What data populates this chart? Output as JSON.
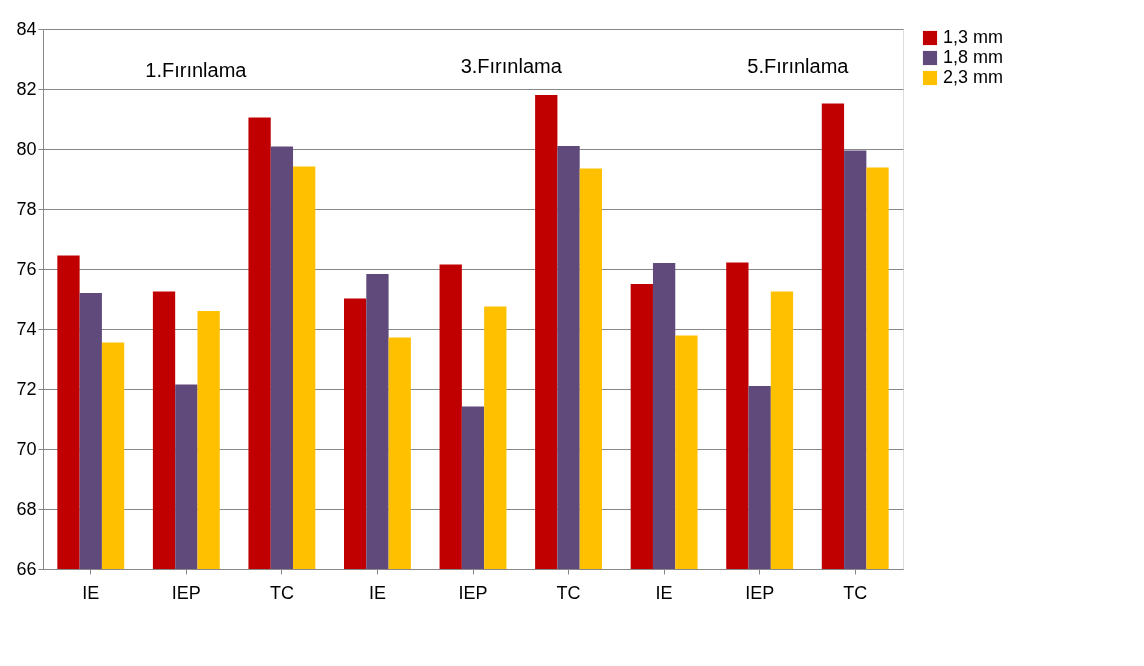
{
  "chart_data": {
    "type": "bar",
    "categories": [
      "IE",
      "IEP",
      "TC",
      "IE",
      "IEP",
      "TC",
      "IE",
      "IEP",
      "TC"
    ],
    "series": [
      {
        "name": "1,3 mm",
        "color": "#c00000",
        "values": [
          76.45,
          75.25,
          81.05,
          75.02,
          76.15,
          81.8,
          75.5,
          76.22,
          81.52
        ]
      },
      {
        "name": "1,8 mm",
        "color": "#604a7b",
        "values": [
          75.2,
          72.15,
          80.08,
          75.83,
          71.42,
          80.1,
          76.2,
          72.1,
          79.95
        ]
      },
      {
        "name": "2,3 mm",
        "color": "#ffc000",
        "values": [
          73.55,
          74.6,
          79.42,
          73.72,
          74.75,
          79.35,
          73.78,
          75.25,
          79.38
        ]
      }
    ],
    "annotations": [
      "1.Fırınlama",
      "3.Fırınlama",
      "5.Fırınlama"
    ],
    "ylim": [
      66,
      84
    ],
    "yticks": [
      66,
      68,
      70,
      72,
      74,
      76,
      78,
      80,
      82,
      84
    ],
    "grid": "y",
    "legend": "right"
  }
}
